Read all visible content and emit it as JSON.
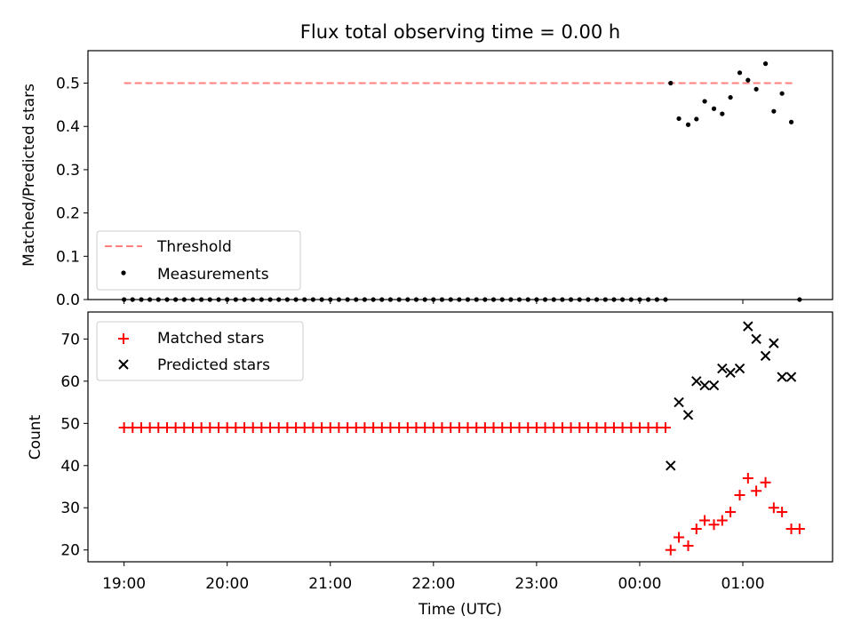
{
  "chart_data": [
    {
      "type": "scatter",
      "title": "Flux total observing time = 0.00 h",
      "ylabel": "Matched/Predicted stars",
      "xlabel": "",
      "xlim_hours": [
        18.65,
        25.87
      ],
      "ylim": [
        0,
        0.575
      ],
      "yticks": [
        0.0,
        0.1,
        0.2,
        0.3,
        0.4,
        0.5
      ],
      "ytick_labels": [
        "0.0",
        "0.1",
        "0.2",
        "0.3",
        "0.4",
        "0.5"
      ],
      "legend_position": "lower-left",
      "threshold": {
        "name": "Threshold",
        "value": 0.5,
        "x_range": [
          19.0,
          25.5
        ],
        "color": "#ff7f7f",
        "style": "dashed"
      },
      "series": [
        {
          "name": "Measurements",
          "color": "#000000",
          "marker": "dot",
          "points": [
            [
              19.0,
              0
            ],
            [
              19.083,
              0
            ],
            [
              19.167,
              0
            ],
            [
              19.25,
              0
            ],
            [
              19.333,
              0
            ],
            [
              19.417,
              0
            ],
            [
              19.5,
              0
            ],
            [
              19.583,
              0
            ],
            [
              19.667,
              0
            ],
            [
              19.75,
              0
            ],
            [
              19.833,
              0
            ],
            [
              19.917,
              0
            ],
            [
              20.0,
              0
            ],
            [
              20.083,
              0
            ],
            [
              20.167,
              0
            ],
            [
              20.25,
              0
            ],
            [
              20.333,
              0
            ],
            [
              20.417,
              0
            ],
            [
              20.5,
              0
            ],
            [
              20.583,
              0
            ],
            [
              20.667,
              0
            ],
            [
              20.75,
              0
            ],
            [
              20.833,
              0
            ],
            [
              20.917,
              0
            ],
            [
              21.0,
              0
            ],
            [
              21.083,
              0
            ],
            [
              21.167,
              0
            ],
            [
              21.25,
              0
            ],
            [
              21.333,
              0
            ],
            [
              21.417,
              0
            ],
            [
              21.5,
              0
            ],
            [
              21.583,
              0
            ],
            [
              21.667,
              0
            ],
            [
              21.75,
              0
            ],
            [
              21.833,
              0
            ],
            [
              21.917,
              0
            ],
            [
              22.0,
              0
            ],
            [
              22.083,
              0
            ],
            [
              22.167,
              0
            ],
            [
              22.25,
              0
            ],
            [
              22.333,
              0
            ],
            [
              22.417,
              0
            ],
            [
              22.5,
              0
            ],
            [
              22.583,
              0
            ],
            [
              22.667,
              0
            ],
            [
              22.75,
              0
            ],
            [
              22.833,
              0
            ],
            [
              22.917,
              0
            ],
            [
              23.0,
              0
            ],
            [
              23.083,
              0
            ],
            [
              23.167,
              0
            ],
            [
              23.25,
              0
            ],
            [
              23.333,
              0
            ],
            [
              23.417,
              0
            ],
            [
              23.5,
              0
            ],
            [
              23.583,
              0
            ],
            [
              23.667,
              0
            ],
            [
              23.75,
              0
            ],
            [
              23.833,
              0
            ],
            [
              23.917,
              0
            ],
            [
              24.0,
              0
            ],
            [
              24.083,
              0
            ],
            [
              24.167,
              0
            ],
            [
              24.25,
              0
            ],
            [
              24.3,
              0.5
            ],
            [
              24.38,
              0.418
            ],
            [
              24.47,
              0.404
            ],
            [
              24.55,
              0.417
            ],
            [
              24.63,
              0.458
            ],
            [
              24.72,
              0.441
            ],
            [
              24.8,
              0.429
            ],
            [
              24.88,
              0.467
            ],
            [
              24.97,
              0.524
            ],
            [
              25.05,
              0.507
            ],
            [
              25.13,
              0.486
            ],
            [
              25.22,
              0.545
            ],
            [
              25.3,
              0.435
            ],
            [
              25.38,
              0.476
            ],
            [
              25.47,
              0.41
            ],
            [
              25.55,
              0
            ]
          ]
        }
      ]
    },
    {
      "type": "scatter",
      "title": "",
      "xlabel": "Time (UTC)",
      "ylabel": "Count",
      "xlim_hours": [
        18.65,
        25.87
      ],
      "ylim": [
        17.2,
        76.4
      ],
      "xticks_hours": [
        19,
        20,
        21,
        22,
        23,
        24,
        25
      ],
      "xtick_labels": [
        "19:00",
        "20:00",
        "21:00",
        "22:00",
        "23:00",
        "00:00",
        "01:00"
      ],
      "yticks": [
        20,
        30,
        40,
        50,
        60,
        70
      ],
      "ytick_labels": [
        "20",
        "30",
        "40",
        "50",
        "60",
        "70"
      ],
      "legend_position": "upper-left",
      "series": [
        {
          "name": "Matched stars",
          "color": "#ff0000",
          "marker": "plus",
          "points": [
            [
              19.0,
              49
            ],
            [
              19.083,
              49
            ],
            [
              19.167,
              49
            ],
            [
              19.25,
              49
            ],
            [
              19.333,
              49
            ],
            [
              19.417,
              49
            ],
            [
              19.5,
              49
            ],
            [
              19.583,
              49
            ],
            [
              19.667,
              49
            ],
            [
              19.75,
              49
            ],
            [
              19.833,
              49
            ],
            [
              19.917,
              49
            ],
            [
              20.0,
              49
            ],
            [
              20.083,
              49
            ],
            [
              20.167,
              49
            ],
            [
              20.25,
              49
            ],
            [
              20.333,
              49
            ],
            [
              20.417,
              49
            ],
            [
              20.5,
              49
            ],
            [
              20.583,
              49
            ],
            [
              20.667,
              49
            ],
            [
              20.75,
              49
            ],
            [
              20.833,
              49
            ],
            [
              20.917,
              49
            ],
            [
              21.0,
              49
            ],
            [
              21.083,
              49
            ],
            [
              21.167,
              49
            ],
            [
              21.25,
              49
            ],
            [
              21.333,
              49
            ],
            [
              21.417,
              49
            ],
            [
              21.5,
              49
            ],
            [
              21.583,
              49
            ],
            [
              21.667,
              49
            ],
            [
              21.75,
              49
            ],
            [
              21.833,
              49
            ],
            [
              21.917,
              49
            ],
            [
              22.0,
              49
            ],
            [
              22.083,
              49
            ],
            [
              22.167,
              49
            ],
            [
              22.25,
              49
            ],
            [
              22.333,
              49
            ],
            [
              22.417,
              49
            ],
            [
              22.5,
              49
            ],
            [
              22.583,
              49
            ],
            [
              22.667,
              49
            ],
            [
              22.75,
              49
            ],
            [
              22.833,
              49
            ],
            [
              22.917,
              49
            ],
            [
              23.0,
              49
            ],
            [
              23.083,
              49
            ],
            [
              23.167,
              49
            ],
            [
              23.25,
              49
            ],
            [
              23.333,
              49
            ],
            [
              23.417,
              49
            ],
            [
              23.5,
              49
            ],
            [
              23.583,
              49
            ],
            [
              23.667,
              49
            ],
            [
              23.75,
              49
            ],
            [
              23.833,
              49
            ],
            [
              23.917,
              49
            ],
            [
              24.0,
              49
            ],
            [
              24.083,
              49
            ],
            [
              24.167,
              49
            ],
            [
              24.25,
              49
            ],
            [
              24.3,
              20
            ],
            [
              24.38,
              23
            ],
            [
              24.47,
              21
            ],
            [
              24.55,
              25
            ],
            [
              24.63,
              27
            ],
            [
              24.72,
              26
            ],
            [
              24.8,
              27
            ],
            [
              24.88,
              29
            ],
            [
              24.97,
              33
            ],
            [
              25.05,
              37
            ],
            [
              25.13,
              34
            ],
            [
              25.22,
              36
            ],
            [
              25.3,
              30
            ],
            [
              25.38,
              29
            ],
            [
              25.47,
              25
            ],
            [
              25.55,
              25
            ]
          ]
        },
        {
          "name": "Predicted stars",
          "color": "#000000",
          "marker": "x",
          "points": [
            [
              24.3,
              40
            ],
            [
              24.38,
              55
            ],
            [
              24.47,
              52
            ],
            [
              24.55,
              60
            ],
            [
              24.63,
              59
            ],
            [
              24.72,
              59
            ],
            [
              24.8,
              63
            ],
            [
              24.88,
              62
            ],
            [
              24.97,
              63
            ],
            [
              25.05,
              73
            ],
            [
              25.13,
              70
            ],
            [
              25.22,
              66
            ],
            [
              25.3,
              69
            ],
            [
              25.38,
              61
            ],
            [
              25.47,
              61
            ]
          ]
        }
      ]
    }
  ]
}
